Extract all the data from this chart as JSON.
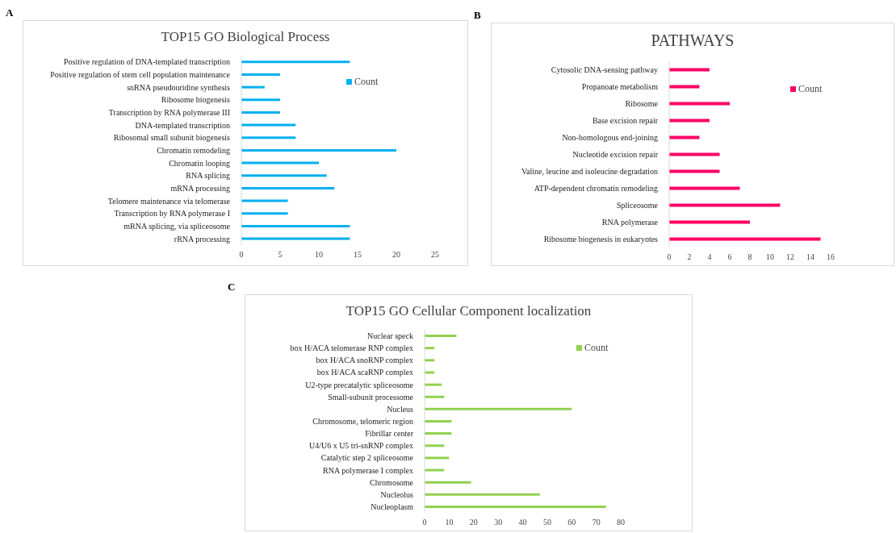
{
  "chart_data": [
    {
      "type": "bar",
      "orientation": "horizontal",
      "title": "TOP15 GO Biological Process",
      "annotations": [
        "A"
      ],
      "legend": "top right",
      "categories": [
        "Positive regulation of DNA-templated transcription",
        "Positive regulation of stem cell population maintenance",
        "snRNA pseudouridine synthesis",
        "Ribosome biogenesis",
        "Transcription by RNA polymerase III",
        "DNA-templated transcription",
        "Ribosomal small subunit biogenesis",
        "Chromatin remodeling",
        "Chromatin looping",
        "RNA splicing",
        "mRNA processing",
        "Telomere maintenance via telomerase",
        "Transcription by RNA polymerase I",
        "mRNA splicing, via spliceosome",
        "rRNA processing"
      ],
      "series": [
        {
          "name": "Count",
          "color": "#00b0f0",
          "values": [
            14,
            5,
            3,
            5,
            5,
            7,
            7,
            20,
            10,
            11,
            12,
            6,
            6,
            14,
            14
          ]
        }
      ],
      "xlim": [
        0,
        25
      ],
      "xticks": [
        0,
        5,
        10,
        15,
        20,
        25
      ]
    },
    {
      "type": "bar",
      "orientation": "horizontal",
      "title": "PATHWAYS",
      "annotations": [
        "B"
      ],
      "legend": "top right",
      "categories": [
        "Cytosolic DNA-sensing pathway",
        "Propanoate metabolism",
        "Ribosome",
        "Base excision repair",
        "Non-homologous end-joining",
        "Nucleotide excision repair",
        "Valine, leucine and isoleucine degradation",
        "ATP-dependent chromatin remodeling",
        "Spliceosome",
        "RNA polymerase",
        "Ribosome biogenesis in eukaryotes"
      ],
      "series": [
        {
          "name": "Count",
          "color": "#ff0066",
          "values": [
            4,
            3,
            6,
            4,
            3,
            5,
            5,
            7,
            11,
            8,
            15
          ]
        }
      ],
      "xlim": [
        0,
        16
      ],
      "xticks": [
        0,
        2,
        4,
        6,
        8,
        10,
        12,
        14,
        16
      ]
    },
    {
      "type": "bar",
      "orientation": "horizontal",
      "title": "TOP15 GO Cellular Component localization",
      "annotations": [
        "C"
      ],
      "legend": "top right",
      "categories": [
        "Nuclear speck",
        "box H/ACA telomerase RNP complex",
        "box H/ACA snoRNP complex",
        "box H/ACA scaRNP complex",
        "U2-type precatalytic spliceosome",
        "Small-subunit processome",
        "Nucleus",
        "Chromosome, telomeric region",
        "Fibrillar center",
        "U4/U6 x U5 tri-snRNP complex",
        "Catalytic step 2 spliceosome",
        "RNA polymerase I complex",
        "Chromosome",
        "Nucleolus",
        "Nucleoplasm"
      ],
      "series": [
        {
          "name": "Count",
          "color": "#92d050",
          "values": [
            13,
            4,
            4,
            4,
            7,
            8,
            60,
            11,
            11,
            8,
            10,
            8,
            19,
            47,
            74
          ]
        }
      ],
      "xlim": [
        0,
        80
      ],
      "xticks": [
        0,
        10,
        20,
        30,
        40,
        50,
        60,
        70,
        80
      ]
    }
  ]
}
